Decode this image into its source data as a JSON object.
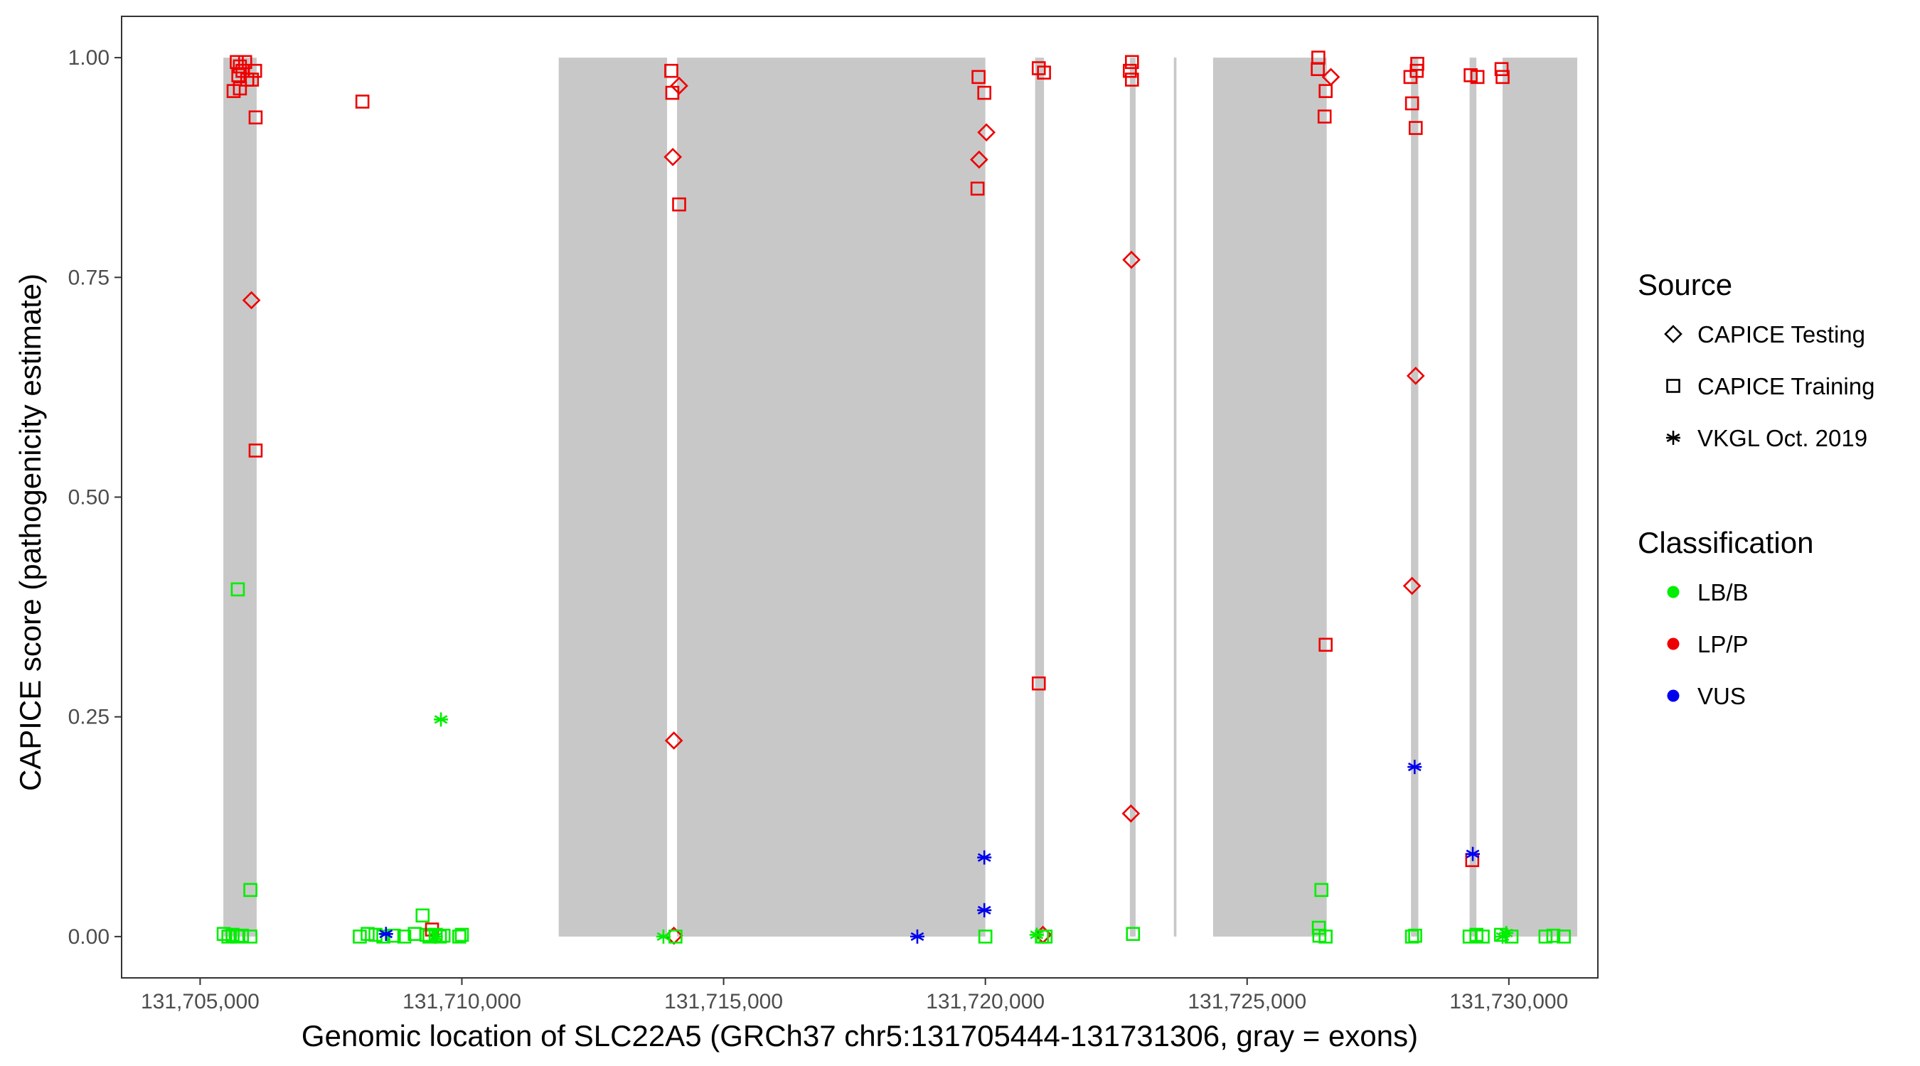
{
  "chart_data": {
    "type": "scatter",
    "xlabel": "Genomic location of SLC22A5 (GRCh37 chr5:131705444-131731306, gray = exons)",
    "ylabel": "CAPICE score (pathogenicity estimate)",
    "xlim": [
      131703500,
      131731700
    ],
    "ylim": [
      -0.047,
      1.047
    ],
    "x_ticks": [
      131705000,
      131710000,
      131715000,
      131720000,
      131725000,
      131730000
    ],
    "x_tick_labels": [
      "131,705,000",
      "131,710,000",
      "131,715,000",
      "131,720,000",
      "131,725,000",
      "131,730,000"
    ],
    "y_ticks": [
      0,
      0.25,
      0.5,
      0.75,
      1.0
    ],
    "y_tick_labels": [
      "0.00",
      "0.25",
      "0.50",
      "0.75",
      "1.00"
    ],
    "grid": false,
    "exon_color": "#c8c8c8",
    "exons": [
      [
        131705444,
        131706080
      ],
      [
        131711850,
        131713920
      ],
      [
        131714110,
        131720000
      ],
      [
        131720950,
        131721120
      ],
      [
        131722760,
        131722870
      ],
      [
        131723600,
        131723650
      ],
      [
        131724350,
        131726520
      ],
      [
        131728130,
        131728270
      ],
      [
        131729250,
        131729380
      ],
      [
        131729880,
        131731306
      ]
    ],
    "legend": {
      "placement": "right",
      "source": {
        "title": "Source",
        "entries": [
          {
            "label": "CAPICE Testing",
            "shape": "diamond"
          },
          {
            "label": "CAPICE Training",
            "shape": "square"
          },
          {
            "label": "VKGL Oct. 2019",
            "shape": "asterisk"
          }
        ]
      },
      "classification": {
        "title": "Classification",
        "entries": [
          {
            "label": "LB/B",
            "color": "#00ee00"
          },
          {
            "label": "LP/P",
            "color": "#ee0000"
          },
          {
            "label": "VUS",
            "color": "#0000ee"
          }
        ]
      }
    },
    "colors": {
      "LB/B": "#00ee00",
      "LP/P": "#ee0000",
      "VUS": "#0000ee"
    },
    "points": [
      {
        "x": 131705700,
        "y": 0.995,
        "shape": "square",
        "class": "LP/P"
      },
      {
        "x": 131705760,
        "y": 0.99,
        "shape": "square",
        "class": "LP/P"
      },
      {
        "x": 131705810,
        "y": 0.985,
        "shape": "square",
        "class": "LP/P"
      },
      {
        "x": 131705860,
        "y": 0.995,
        "shape": "square",
        "class": "LP/P"
      },
      {
        "x": 131705730,
        "y": 0.98,
        "shape": "square",
        "class": "LP/P"
      },
      {
        "x": 131705900,
        "y": 0.975,
        "shape": "square",
        "class": "LP/P"
      },
      {
        "x": 131706050,
        "y": 0.985,
        "shape": "square",
        "class": "LP/P"
      },
      {
        "x": 131705640,
        "y": 0.962,
        "shape": "square",
        "class": "LP/P"
      },
      {
        "x": 131705760,
        "y": 0.965,
        "shape": "square",
        "class": "LP/P"
      },
      {
        "x": 131705990,
        "y": 0.975,
        "shape": "square",
        "class": "LP/P"
      },
      {
        "x": 131706060,
        "y": 0.932,
        "shape": "square",
        "class": "LP/P"
      },
      {
        "x": 131705980,
        "y": 0.724,
        "shape": "diamond",
        "class": "LP/P"
      },
      {
        "x": 131706060,
        "y": 0.553,
        "shape": "square",
        "class": "LP/P"
      },
      {
        "x": 131705720,
        "y": 0.395,
        "shape": "square",
        "class": "LB/B"
      },
      {
        "x": 131705960,
        "y": 0.053,
        "shape": "square",
        "class": "LB/B"
      },
      {
        "x": 131705450,
        "y": 0.003,
        "shape": "square",
        "class": "LB/B"
      },
      {
        "x": 131705540,
        "y": 0.0,
        "shape": "square",
        "class": "LB/B"
      },
      {
        "x": 131705620,
        "y": 0.002,
        "shape": "square",
        "class": "LB/B"
      },
      {
        "x": 131705710,
        "y": 0.0,
        "shape": "square",
        "class": "LB/B"
      },
      {
        "x": 131705800,
        "y": 0.001,
        "shape": "square",
        "class": "LB/B"
      },
      {
        "x": 131705960,
        "y": 0.0,
        "shape": "square",
        "class": "LB/B"
      },
      {
        "x": 131708100,
        "y": 0.95,
        "shape": "square",
        "class": "LP/P"
      },
      {
        "x": 131708050,
        "y": 0.0,
        "shape": "square",
        "class": "LB/B"
      },
      {
        "x": 131708200,
        "y": 0.003,
        "shape": "square",
        "class": "LB/B"
      },
      {
        "x": 131708350,
        "y": 0.002,
        "shape": "square",
        "class": "LB/B"
      },
      {
        "x": 131708500,
        "y": 0.0,
        "shape": "square",
        "class": "LB/B"
      },
      {
        "x": 131708700,
        "y": 0.001,
        "shape": "square",
        "class": "LB/B"
      },
      {
        "x": 131708900,
        "y": 0.0,
        "shape": "square",
        "class": "LB/B"
      },
      {
        "x": 131709100,
        "y": 0.003,
        "shape": "square",
        "class": "LB/B"
      },
      {
        "x": 131709250,
        "y": 0.024,
        "shape": "square",
        "class": "LB/B"
      },
      {
        "x": 131709320,
        "y": 0.002,
        "shape": "square",
        "class": "LB/B"
      },
      {
        "x": 131709380,
        "y": 0.0,
        "shape": "square",
        "class": "LB/B"
      },
      {
        "x": 131709430,
        "y": 0.008,
        "shape": "square",
        "class": "LP/P"
      },
      {
        "x": 131709500,
        "y": 0.002,
        "shape": "square",
        "class": "LB/B"
      },
      {
        "x": 131709580,
        "y": 0.0,
        "shape": "square",
        "class": "LB/B"
      },
      {
        "x": 131709650,
        "y": 0.001,
        "shape": "square",
        "class": "LB/B"
      },
      {
        "x": 131709950,
        "y": 0.0,
        "shape": "square",
        "class": "LB/B"
      },
      {
        "x": 131710000,
        "y": 0.002,
        "shape": "square",
        "class": "LB/B"
      },
      {
        "x": 131708550,
        "y": 0.003,
        "shape": "asterisk",
        "class": "VUS"
      },
      {
        "x": 131709600,
        "y": 0.247,
        "shape": "asterisk",
        "class": "LB/B"
      },
      {
        "x": 131709500,
        "y": 0.0,
        "shape": "asterisk",
        "class": "LB/B"
      },
      {
        "x": 131714000,
        "y": 0.985,
        "shape": "square",
        "class": "LP/P"
      },
      {
        "x": 131714150,
        "y": 0.968,
        "shape": "diamond",
        "class": "LP/P"
      },
      {
        "x": 131714020,
        "y": 0.96,
        "shape": "square",
        "class": "LP/P"
      },
      {
        "x": 131714030,
        "y": 0.887,
        "shape": "diamond",
        "class": "LP/P"
      },
      {
        "x": 131714150,
        "y": 0.833,
        "shape": "square",
        "class": "LP/P"
      },
      {
        "x": 131714050,
        "y": 0.223,
        "shape": "diamond",
        "class": "LP/P"
      },
      {
        "x": 131714050,
        "y": 0.001,
        "shape": "diamond",
        "class": "LP/P"
      },
      {
        "x": 131714080,
        "y": 0.0,
        "shape": "square",
        "class": "LB/B"
      },
      {
        "x": 131713850,
        "y": 0.0,
        "shape": "asterisk",
        "class": "LB/B"
      },
      {
        "x": 131719870,
        "y": 0.978,
        "shape": "square",
        "class": "LP/P"
      },
      {
        "x": 131719980,
        "y": 0.96,
        "shape": "square",
        "class": "LP/P"
      },
      {
        "x": 131720020,
        "y": 0.915,
        "shape": "diamond",
        "class": "LP/P"
      },
      {
        "x": 131719880,
        "y": 0.884,
        "shape": "diamond",
        "class": "LP/P"
      },
      {
        "x": 131719850,
        "y": 0.851,
        "shape": "square",
        "class": "LP/P"
      },
      {
        "x": 131720000,
        "y": 0.0,
        "shape": "square",
        "class": "LB/B"
      },
      {
        "x": 131718700,
        "y": 0.0,
        "shape": "asterisk",
        "class": "VUS"
      },
      {
        "x": 131719980,
        "y": 0.09,
        "shape": "asterisk",
        "class": "VUS"
      },
      {
        "x": 131719980,
        "y": 0.03,
        "shape": "asterisk",
        "class": "VUS"
      },
      {
        "x": 131721020,
        "y": 0.988,
        "shape": "square",
        "class": "LP/P"
      },
      {
        "x": 131721120,
        "y": 0.983,
        "shape": "square",
        "class": "LP/P"
      },
      {
        "x": 131721020,
        "y": 0.288,
        "shape": "square",
        "class": "LP/P"
      },
      {
        "x": 131721100,
        "y": 0.002,
        "shape": "diamond",
        "class": "LP/P"
      },
      {
        "x": 131721080,
        "y": 0.0,
        "shape": "square",
        "class": "LB/B"
      },
      {
        "x": 131721150,
        "y": 0.0,
        "shape": "square",
        "class": "LB/B"
      },
      {
        "x": 131720980,
        "y": 0.002,
        "shape": "asterisk",
        "class": "LB/B"
      },
      {
        "x": 131722800,
        "y": 0.995,
        "shape": "square",
        "class": "LP/P"
      },
      {
        "x": 131722760,
        "y": 0.985,
        "shape": "square",
        "class": "LP/P"
      },
      {
        "x": 131722800,
        "y": 0.975,
        "shape": "square",
        "class": "LP/P"
      },
      {
        "x": 131722790,
        "y": 0.77,
        "shape": "diamond",
        "class": "LP/P"
      },
      {
        "x": 131722780,
        "y": 0.14,
        "shape": "diamond",
        "class": "LP/P"
      },
      {
        "x": 131722820,
        "y": 0.003,
        "shape": "square",
        "class": "LB/B"
      },
      {
        "x": 131726360,
        "y": 1.0,
        "shape": "square",
        "class": "LP/P"
      },
      {
        "x": 131726350,
        "y": 0.987,
        "shape": "square",
        "class": "LP/P"
      },
      {
        "x": 131726600,
        "y": 0.978,
        "shape": "diamond",
        "class": "LP/P"
      },
      {
        "x": 131726500,
        "y": 0.962,
        "shape": "square",
        "class": "LP/P"
      },
      {
        "x": 131726480,
        "y": 0.933,
        "shape": "square",
        "class": "LP/P"
      },
      {
        "x": 131726500,
        "y": 0.332,
        "shape": "square",
        "class": "LP/P"
      },
      {
        "x": 131726420,
        "y": 0.053,
        "shape": "square",
        "class": "LB/B"
      },
      {
        "x": 131726370,
        "y": 0.01,
        "shape": "square",
        "class": "LB/B"
      },
      {
        "x": 131726380,
        "y": 0.001,
        "shape": "square",
        "class": "LB/B"
      },
      {
        "x": 131726500,
        "y": 0.0,
        "shape": "square",
        "class": "LB/B"
      },
      {
        "x": 131728250,
        "y": 0.993,
        "shape": "square",
        "class": "LP/P"
      },
      {
        "x": 131728240,
        "y": 0.985,
        "shape": "square",
        "class": "LP/P"
      },
      {
        "x": 131728120,
        "y": 0.978,
        "shape": "square",
        "class": "LP/P"
      },
      {
        "x": 131728150,
        "y": 0.948,
        "shape": "square",
        "class": "LP/P"
      },
      {
        "x": 131728220,
        "y": 0.92,
        "shape": "square",
        "class": "LP/P"
      },
      {
        "x": 131728220,
        "y": 0.638,
        "shape": "diamond",
        "class": "LP/P"
      },
      {
        "x": 131728150,
        "y": 0.399,
        "shape": "diamond",
        "class": "LP/P"
      },
      {
        "x": 131728200,
        "y": 0.193,
        "shape": "asterisk",
        "class": "VUS"
      },
      {
        "x": 131728150,
        "y": 0.0,
        "shape": "square",
        "class": "LB/B"
      },
      {
        "x": 131728210,
        "y": 0.001,
        "shape": "square",
        "class": "LB/B"
      },
      {
        "x": 131729270,
        "y": 0.98,
        "shape": "square",
        "class": "LP/P"
      },
      {
        "x": 131729400,
        "y": 0.978,
        "shape": "square",
        "class": "LP/P"
      },
      {
        "x": 131729300,
        "y": 0.087,
        "shape": "square",
        "class": "LP/P"
      },
      {
        "x": 131729310,
        "y": 0.094,
        "shape": "asterisk",
        "class": "VUS"
      },
      {
        "x": 131729250,
        "y": 0.0,
        "shape": "square",
        "class": "LB/B"
      },
      {
        "x": 131729380,
        "y": 0.002,
        "shape": "square",
        "class": "LB/B"
      },
      {
        "x": 131729500,
        "y": 0.0,
        "shape": "square",
        "class": "LB/B"
      },
      {
        "x": 131729860,
        "y": 0.987,
        "shape": "square",
        "class": "LP/P"
      },
      {
        "x": 131729880,
        "y": 0.978,
        "shape": "square",
        "class": "LP/P"
      },
      {
        "x": 131729850,
        "y": 0.002,
        "shape": "square",
        "class": "LB/B"
      },
      {
        "x": 131730050,
        "y": 0.0,
        "shape": "square",
        "class": "LB/B"
      },
      {
        "x": 131729950,
        "y": 0.004,
        "shape": "asterisk",
        "class": "LB/B"
      },
      {
        "x": 131729880,
        "y": 0.0,
        "shape": "asterisk",
        "class": "LB/B"
      },
      {
        "x": 131730700,
        "y": 0.0,
        "shape": "square",
        "class": "LB/B"
      },
      {
        "x": 131730850,
        "y": 0.001,
        "shape": "square",
        "class": "LB/B"
      },
      {
        "x": 131731050,
        "y": 0.0,
        "shape": "square",
        "class": "LB/B"
      }
    ]
  }
}
